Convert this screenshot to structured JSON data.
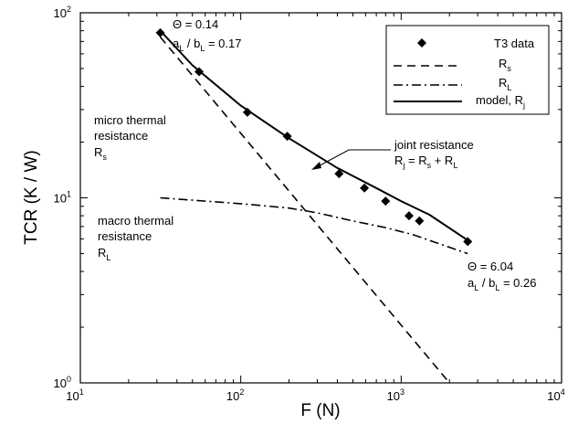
{
  "chart_data": {
    "type": "line",
    "xlabel": "F (N)",
    "ylabel": "TCR (K / W)",
    "xscale": "log",
    "yscale": "log",
    "xlim": [
      10,
      10000
    ],
    "ylim": [
      1,
      100
    ],
    "grid": false,
    "legend_position": "top-right",
    "x_ticks": [
      {
        "base": "10",
        "exp": "1"
      },
      {
        "base": "10",
        "exp": "2"
      },
      {
        "base": "10",
        "exp": "3"
      },
      {
        "base": "10",
        "exp": "4"
      }
    ],
    "y_ticks": [
      {
        "base": "10",
        "exp": "0"
      },
      {
        "base": "10",
        "exp": "1"
      },
      {
        "base": "10",
        "exp": "2"
      }
    ],
    "series": [
      {
        "name": "T3 data",
        "style": "markers",
        "marker": "diamond",
        "x": [
          31.5,
          55,
          110,
          195,
          410,
          590,
          800,
          1120,
          1300,
          2600
        ],
        "y": [
          78,
          48,
          29,
          21.5,
          13.5,
          11.3,
          9.6,
          8.0,
          7.5,
          5.8
        ]
      },
      {
        "name": "R_s",
        "style": "dashed",
        "x": [
          31.5,
          2000
        ],
        "y": [
          74,
          1.0
        ]
      },
      {
        "name": "R_L",
        "style": "dash-dot",
        "x": [
          31.5,
          100,
          200,
          300,
          500,
          800,
          1200,
          2600
        ],
        "y": [
          10.0,
          9.3,
          8.8,
          8.3,
          7.5,
          6.9,
          6.3,
          5.0
        ]
      },
      {
        "name": "model, R_j",
        "style": "solid",
        "x": [
          31.5,
          50,
          100,
          200,
          400,
          700,
          1000,
          1500,
          2600
        ],
        "y": [
          80,
          52,
          31.5,
          21.0,
          14.5,
          11.3,
          9.6,
          8.1,
          5.9
        ]
      }
    ],
    "legend_entries": [
      {
        "text": "T3 data",
        "sub": ""
      },
      {
        "text": "R",
        "sub": "s"
      },
      {
        "text": "R",
        "sub": "L"
      },
      {
        "text": "model, R",
        "sub": "j"
      }
    ],
    "annotations": {
      "top_theta": "Θ = 0.14",
      "top_ratio": {
        "a": "a",
        "a_sub": "L",
        "mid": " / b",
        "b_sub": "L",
        "val": " = 0.17"
      },
      "micro_line1": "micro thermal",
      "micro_line2": "resistance",
      "micro_R": "R",
      "micro_R_sub": "s",
      "macro_line1": "macro thermal",
      "macro_line2": "resistance",
      "macro_R": "R",
      "macro_R_sub": "L",
      "joint_line1": "joint resistance",
      "joint_eq": {
        "r1": "R",
        "s1": "j",
        "m1": " = R",
        "s2": "s",
        "m2": " + R",
        "s3": "L"
      },
      "bottom_theta": "Θ = 6.04",
      "bottom_ratio": {
        "a": "a",
        "a_sub": "L",
        "mid": " / b",
        "b_sub": "L",
        "val": " = 0.26"
      }
    }
  }
}
